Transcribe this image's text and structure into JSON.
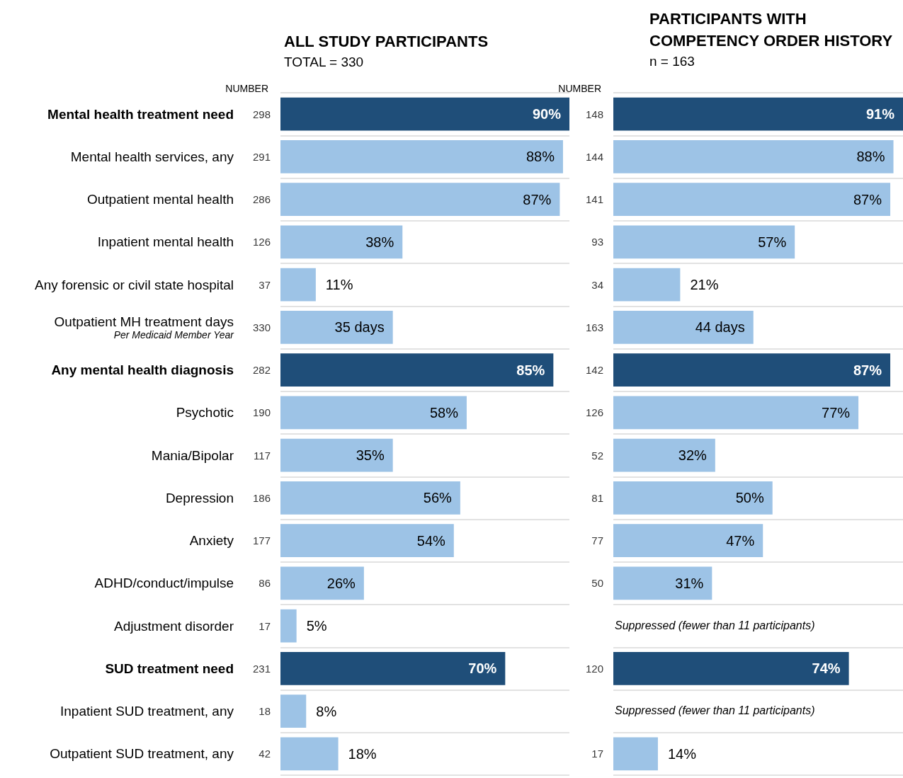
{
  "chart_data": [
    {
      "type": "other",
      "title": "NUMBER",
      "values": [
        298,
        291,
        286,
        126,
        37,
        330,
        282,
        190,
        117,
        186,
        177,
        86,
        17,
        231,
        18,
        42
      ],
      "data_labels": true
    },
    {
      "type": "bar",
      "orientation": "horizontal",
      "title": "ALL STUDY PARTICIPANTS",
      "subtitle": "TOTAL = 330",
      "categories": [
        "Mental health treatment need",
        "Mental health services, any",
        "Outpatient mental health",
        "Inpatient mental health",
        "Any forensic or civil state hospital",
        "Outpatient MH treatment days\nPer Medicaid Member Year",
        "Any mental health diagnosis",
        "Psychotic",
        "Mania/Bipolar",
        "Depression",
        "Anxiety",
        "ADHD/conduct/impulse",
        "Adjustment disorder",
        "SUD treatment need",
        "Inpatient SUD treatment, any",
        "Outpatient SUD treatment, any"
      ],
      "values": [
        90,
        88,
        87,
        38,
        11,
        35,
        85,
        58,
        35,
        56,
        54,
        26,
        5,
        70,
        8,
        18
      ],
      "value_labels": [
        "90%",
        "88%",
        "87%",
        "38%",
        "11%",
        "35 days",
        "85%",
        "58%",
        "35%",
        "56%",
        "54%",
        "26%",
        "5%",
        "70%",
        "8%",
        "18%"
      ],
      "color": "#9dc3e6",
      "colors": [
        "#1f4e79",
        "#9dc3e6",
        "#9dc3e6",
        "#9dc3e6",
        "#9dc3e6",
        "#9dc3e6",
        "#1f4e79",
        "#9dc3e6",
        "#9dc3e6",
        "#9dc3e6",
        "#9dc3e6",
        "#9dc3e6",
        "#9dc3e6",
        "#1f4e79",
        "#9dc3e6",
        "#9dc3e6"
      ],
      "xlim": [
        0,
        90
      ],
      "tick_labels": "y",
      "grid": "y"
    },
    {
      "type": "other",
      "title": "NUMBER",
      "values": [
        148,
        144,
        141,
        93,
        34,
        163,
        142,
        126,
        52,
        81,
        77,
        50,
        null,
        120,
        null,
        17
      ],
      "data_labels": true
    },
    {
      "type": "bar",
      "orientation": "horizontal",
      "title": "PARTICIPANTS WITH\nCOMPETENCY ORDER HISTORY",
      "subtitle": "n = 163",
      "values": [
        91,
        88,
        87,
        57,
        21,
        44,
        87,
        77,
        32,
        50,
        47,
        31,
        null,
        74,
        null,
        14
      ],
      "value_labels": [
        "91%",
        "88%",
        "87%",
        "57%",
        "21%",
        "44 days",
        "87%",
        "77%",
        "32%",
        "50%",
        "47%",
        "31%",
        null,
        "74%",
        null,
        "14%"
      ],
      "color": "#9dc3e6",
      "colors": [
        "#1f4e79",
        "#9dc3e6",
        "#9dc3e6",
        "#9dc3e6",
        "#9dc3e6",
        "#9dc3e6",
        "#1f4e79",
        "#9dc3e6",
        "#9dc3e6",
        "#9dc3e6",
        "#9dc3e6",
        "#9dc3e6",
        "#9dc3e6",
        "#1f4e79",
        "#9dc3e6",
        "#9dc3e6"
      ],
      "xlim": [
        0,
        91
      ],
      "tick_labels": false,
      "grid": "y",
      "annotations": [
        "Suppressed (fewer than 11 participants)",
        "Suppressed (fewer than 11 participants)"
      ]
    }
  ]
}
